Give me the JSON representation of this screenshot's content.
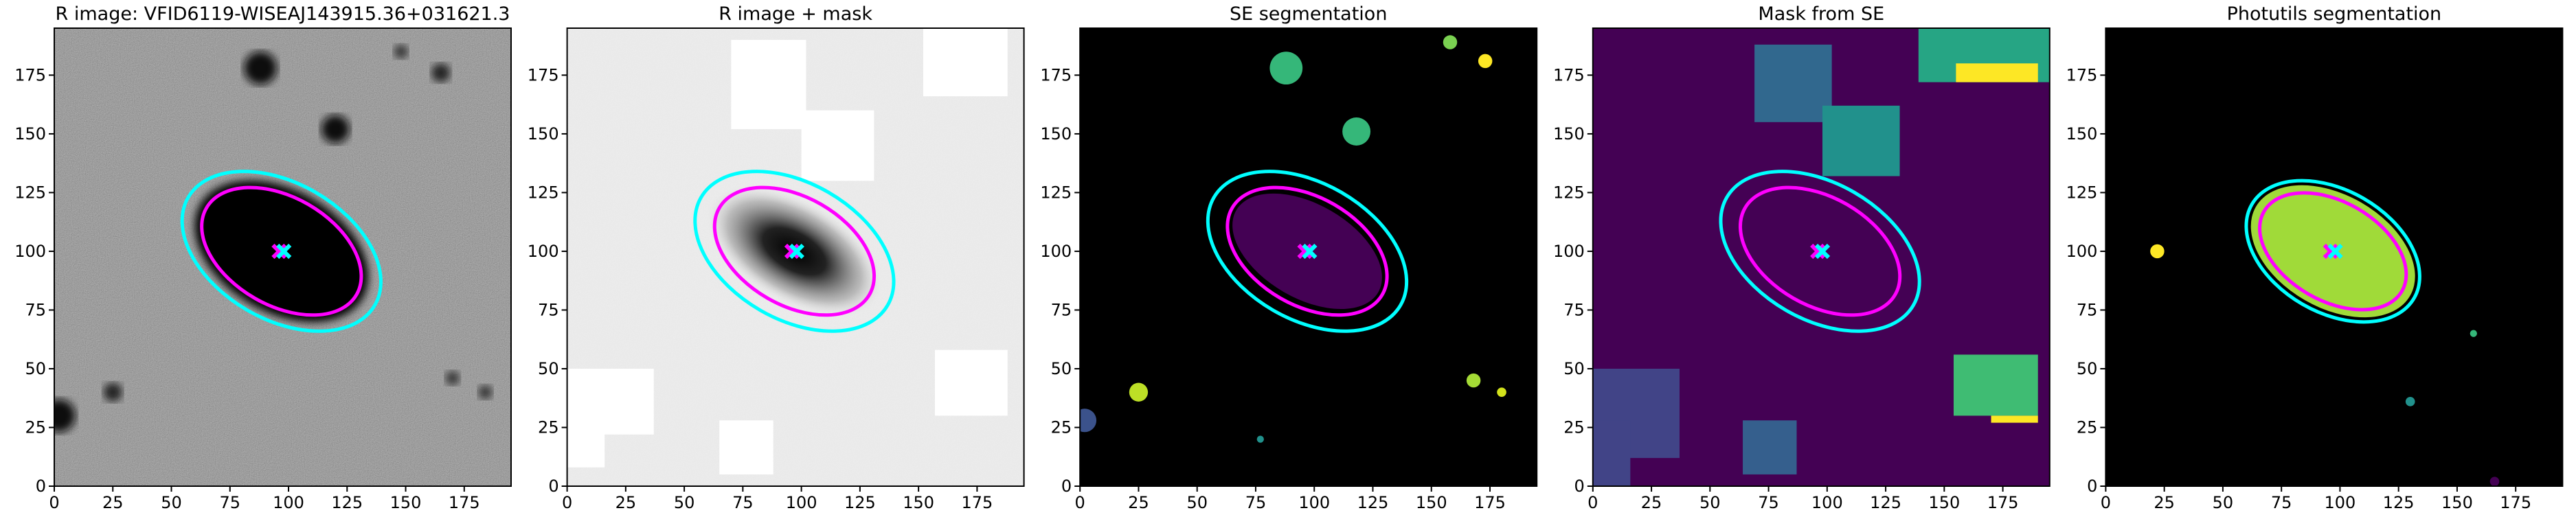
{
  "chart_data": [
    {
      "type": "image",
      "title": "R image: VFID6119-WISEAJ143915.36+031621.3",
      "background": "#808080",
      "xlim": [
        0,
        195
      ],
      "ylim": [
        0,
        195
      ],
      "xticks": [
        0,
        25,
        50,
        75,
        100,
        125,
        150,
        175
      ],
      "yticks": [
        0,
        25,
        50,
        75,
        100,
        125,
        150,
        175
      ],
      "ellipses": [
        {
          "color": "#00ffff",
          "x": 97,
          "y": 100,
          "width": 92,
          "height": 58,
          "angle": -30
        },
        {
          "color": "#ff00ff",
          "x": 97,
          "y": 100,
          "width": 74,
          "height": 46,
          "angle": -30
        }
      ],
      "markers": [
        {
          "color": "#ff00ff",
          "x": 96,
          "y": 100
        },
        {
          "color": "#00ffff",
          "x": 98,
          "y": 100
        }
      ]
    },
    {
      "type": "image",
      "title": "R image + mask",
      "background": "#eeeeee",
      "xlim": [
        0,
        195
      ],
      "ylim": [
        0,
        195
      ],
      "xticks": [
        0,
        25,
        50,
        75,
        100,
        125,
        150,
        175
      ],
      "yticks": [
        0,
        25,
        50,
        75,
        100,
        125,
        150,
        175
      ],
      "ellipses": [
        {
          "color": "#00ffff",
          "x": 97,
          "y": 100,
          "width": 92,
          "height": 58,
          "angle": -30
        },
        {
          "color": "#ff00ff",
          "x": 97,
          "y": 100,
          "width": 74,
          "height": 46,
          "angle": -30
        }
      ],
      "markers": [
        {
          "color": "#ff00ff",
          "x": 96,
          "y": 100
        },
        {
          "color": "#00ffff",
          "x": 98,
          "y": 100
        }
      ]
    },
    {
      "type": "image",
      "title": "SE segmentation",
      "background": "#000000",
      "xlim": [
        0,
        195
      ],
      "ylim": [
        0,
        195
      ],
      "xticks": [
        0,
        25,
        50,
        75,
        100,
        125,
        150,
        175
      ],
      "yticks": [
        0,
        25,
        50,
        75,
        100,
        125,
        150,
        175
      ],
      "ellipses": [
        {
          "color": "#00ffff",
          "x": 97,
          "y": 100,
          "width": 92,
          "height": 58,
          "angle": -30
        },
        {
          "color": "#ff00ff",
          "x": 97,
          "y": 100,
          "width": 74,
          "height": 46,
          "angle": -30
        }
      ],
      "markers": [
        {
          "color": "#ff00ff",
          "x": 96,
          "y": 100
        },
        {
          "color": "#00ffff",
          "x": 98,
          "y": 100
        }
      ]
    },
    {
      "type": "image",
      "title": "Mask from SE",
      "background": "#440154",
      "xlim": [
        0,
        195
      ],
      "ylim": [
        0,
        195
      ],
      "xticks": [
        0,
        25,
        50,
        75,
        100,
        125,
        150,
        175
      ],
      "yticks": [
        0,
        25,
        50,
        75,
        100,
        125,
        150,
        175
      ],
      "ellipses": [
        {
          "color": "#00ffff",
          "x": 97,
          "y": 100,
          "width": 92,
          "height": 58,
          "angle": -30
        },
        {
          "color": "#ff00ff",
          "x": 97,
          "y": 100,
          "width": 74,
          "height": 46,
          "angle": -30
        }
      ],
      "markers": [
        {
          "color": "#ff00ff",
          "x": 96,
          "y": 100
        },
        {
          "color": "#00ffff",
          "x": 98,
          "y": 100
        }
      ]
    },
    {
      "type": "image",
      "title": "Photutils segmentation",
      "background": "#000000",
      "xlim": [
        0,
        195
      ],
      "ylim": [
        0,
        195
      ],
      "xticks": [
        0,
        25,
        50,
        75,
        100,
        125,
        150,
        175
      ],
      "yticks": [
        0,
        25,
        50,
        75,
        100,
        125,
        150,
        175
      ],
      "ellipses": [
        {
          "color": "#00ffff",
          "x": 97,
          "y": 100,
          "width": 80,
          "height": 52,
          "angle": -30
        },
        {
          "color": "#ff00ff",
          "x": 97,
          "y": 100,
          "width": 68,
          "height": 42,
          "angle": -30
        }
      ],
      "markers": [
        {
          "color": "#ff00ff",
          "x": 96,
          "y": 100
        },
        {
          "color": "#00ffff",
          "x": 98,
          "y": 100
        }
      ]
    }
  ]
}
